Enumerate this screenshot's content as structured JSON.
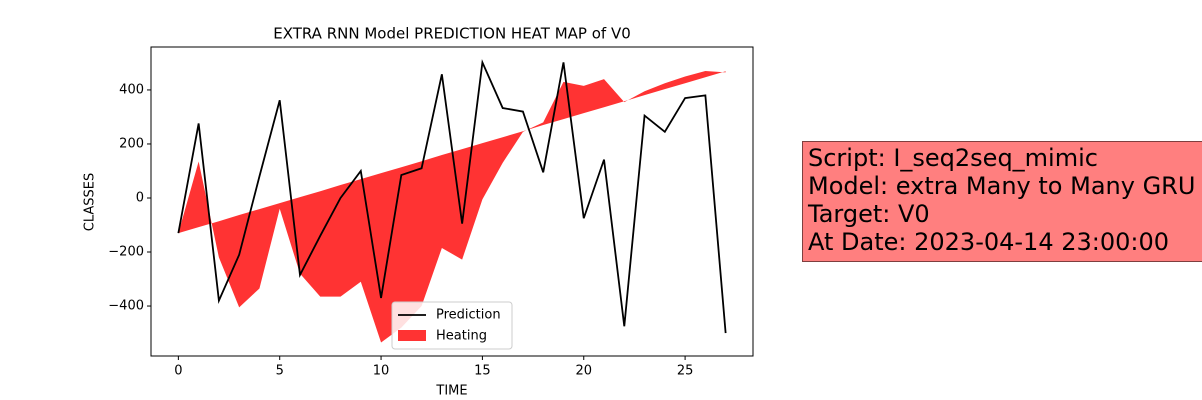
{
  "chart_data": {
    "type": "line",
    "title": "EXTRA RNN Model PREDICTION HEAT MAP of V0",
    "x_label": "TIME",
    "y_label": "CLASSES",
    "x": [
      0,
      1,
      2,
      3,
      4,
      5,
      6,
      7,
      8,
      9,
      10,
      11,
      12,
      13,
      14,
      15,
      16,
      17,
      18,
      19,
      20,
      21,
      22,
      23,
      24,
      25,
      26,
      27
    ],
    "series": [
      {
        "name": "Prediction",
        "color": "#000000",
        "values": [
          -130,
          276,
          -380,
          -210,
          80,
          362,
          -285,
          -140,
          0,
          100,
          -370,
          85,
          110,
          458,
          -95,
          502,
          333,
          320,
          95,
          502,
          -75,
          142,
          -475,
          305,
          245,
          370,
          380,
          -500
        ]
      },
      {
        "name": "Heating",
        "color": "#ff0000",
        "type": "area",
        "values": [
          -130,
          135,
          -220,
          -405,
          -335,
          -40,
          -280,
          -365,
          -365,
          -310,
          -535,
          -480,
          -400,
          -185,
          -228,
          -5,
          130,
          245,
          280,
          430,
          415,
          440,
          355,
          395,
          425,
          450,
          470,
          465
        ],
        "base": [
          -130,
          -108,
          -86,
          -63,
          -41,
          -19,
          3,
          25,
          48,
          70,
          92,
          114,
          136,
          159,
          181,
          203,
          225,
          247,
          270,
          292,
          314,
          336,
          358,
          381,
          403,
          425,
          447,
          469
        ]
      }
    ],
    "xlim": [
      -1.35,
      28.35
    ],
    "ylim": [
      -585,
      559
    ],
    "xticks": [
      0,
      5,
      10,
      15,
      20,
      25
    ],
    "yticks": [
      {
        "value": -400,
        "label": "−400"
      },
      {
        "value": -200,
        "label": "−200"
      },
      0,
      200,
      400
    ],
    "legend": "lower center",
    "annotation": [
      "Script: I_seq2seq_mimic",
      "Model: extra Many to Many GRU",
      "Target: V0",
      "At Date: 2023-04-14 23:00:00"
    ]
  }
}
